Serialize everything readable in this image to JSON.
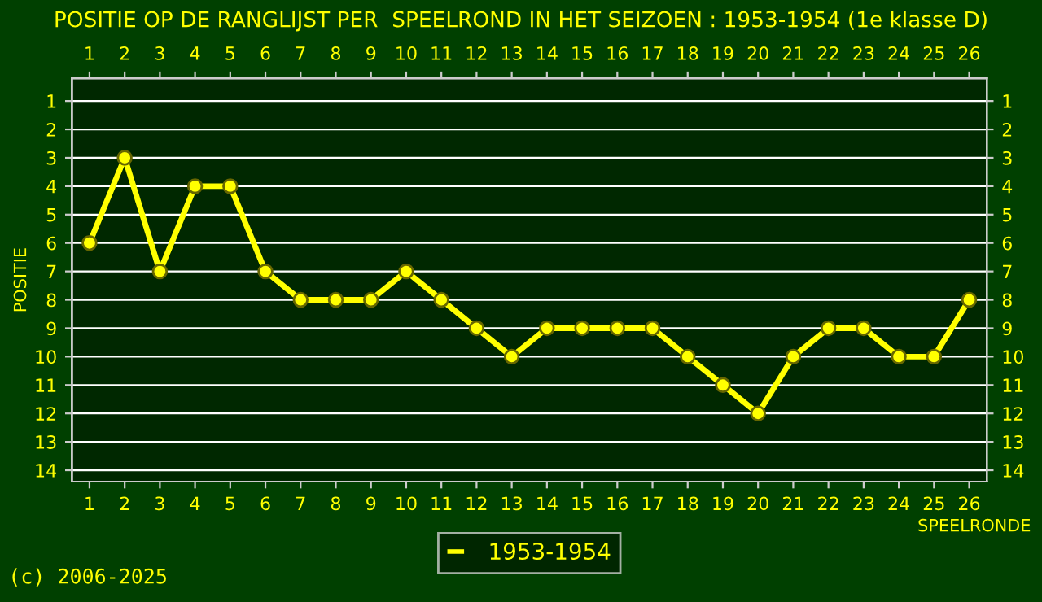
{
  "chart_data": {
    "type": "line",
    "title": "POSITIE OP DE RANGLIJST PER  SPEELROND IN HET SEIZOEN : 1953-1954 (1e klasse D)",
    "xlabel": "SPEELRONDE",
    "ylabel": "POSITIE",
    "x": [
      1,
      2,
      3,
      4,
      5,
      6,
      7,
      8,
      9,
      10,
      11,
      12,
      13,
      14,
      15,
      16,
      17,
      18,
      19,
      20,
      21,
      22,
      23,
      24,
      25,
      26
    ],
    "series": [
      {
        "name": "1953-1954",
        "color": "#ffff00",
        "values": [
          6,
          3,
          7,
          4,
          4,
          7,
          8,
          8,
          8,
          7,
          8,
          9,
          10,
          9,
          9,
          9,
          9,
          10,
          11,
          12,
          10,
          9,
          9,
          10,
          10,
          8
        ]
      }
    ],
    "xlim": [
      0.5,
      26.5
    ],
    "xticks": [
      1,
      2,
      3,
      4,
      5,
      6,
      7,
      8,
      9,
      10,
      11,
      12,
      13,
      14,
      15,
      16,
      17,
      18,
      19,
      20,
      21,
      22,
      23,
      24,
      25,
      26
    ],
    "x2lim": [
      0.5,
      26.5
    ],
    "x2ticks": [
      1,
      2,
      3,
      4,
      5,
      6,
      7,
      8,
      9,
      10,
      11,
      12,
      13,
      14,
      15,
      16,
      17,
      18,
      19,
      20,
      21,
      22,
      23,
      24,
      25,
      26
    ],
    "ylim": [
      14.4,
      0.2
    ],
    "yticks": [
      1,
      2,
      3,
      4,
      5,
      6,
      7,
      8,
      9,
      10,
      11,
      12,
      13,
      14
    ],
    "y2lim": [
      14.4,
      0.2
    ],
    "y2ticks": [
      1,
      2,
      3,
      4,
      5,
      6,
      7,
      8,
      9,
      10,
      11,
      12,
      13,
      14
    ],
    "grid": "y",
    "legend": "bottom",
    "marker": "circle",
    "line_style": "solid",
    "annotations": [
      "(c) 2006-2025"
    ]
  }
}
